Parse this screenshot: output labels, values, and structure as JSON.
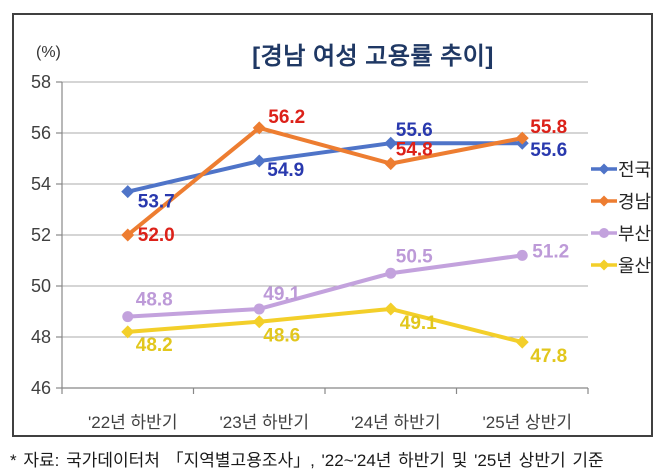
{
  "chart": {
    "title": "[경남 여성 고용률 추이]",
    "unit_label": "(%)"
  },
  "footer": {
    "source_note": "* 자료: 국가데이터처 「지역별고용조사」, '22~'24년 하반기 및 '25년 상반기 기준"
  },
  "colors": {
    "title": "#1F3864",
    "frame_border": "#404040",
    "gridline": "#ABABAB",
    "axis": "#888888",
    "tick_label": "#404040",
    "legend_text": "#262626"
  },
  "chart_data": {
    "type": "line",
    "title": "[경남 여성 고용률 추이]",
    "ylabel": "(%)",
    "categories": [
      "'22년 하반기",
      "'23년 하반기",
      "'24년 하반기",
      "'25년 상반기"
    ],
    "ylim": [
      46,
      58
    ],
    "ytick_step": 2,
    "grid": true,
    "legend_position": "right",
    "series": [
      {
        "key": "nationwide",
        "name": "전국",
        "values": [
          53.7,
          54.9,
          55.6,
          55.6
        ],
        "color": "#4F74C8",
        "label_color": "#2939AE",
        "marker": "diamond"
      },
      {
        "key": "gyeongnam",
        "name": "경남",
        "values": [
          52.0,
          56.2,
          54.8,
          55.8
        ],
        "color": "#ED7D31",
        "label_color": "#DC2119",
        "marker": "diamond"
      },
      {
        "key": "busan",
        "name": "부산",
        "values": [
          48.8,
          49.1,
          50.5,
          51.2
        ],
        "color": "#C3A2DD",
        "label_color": "#BD9AD8",
        "marker": "circle"
      },
      {
        "key": "ulsan",
        "name": "울산",
        "values": [
          48.2,
          48.6,
          49.1,
          47.8
        ],
        "color": "#F3CF2A",
        "label_color": "#E2C71D",
        "marker": "diamond"
      }
    ]
  }
}
